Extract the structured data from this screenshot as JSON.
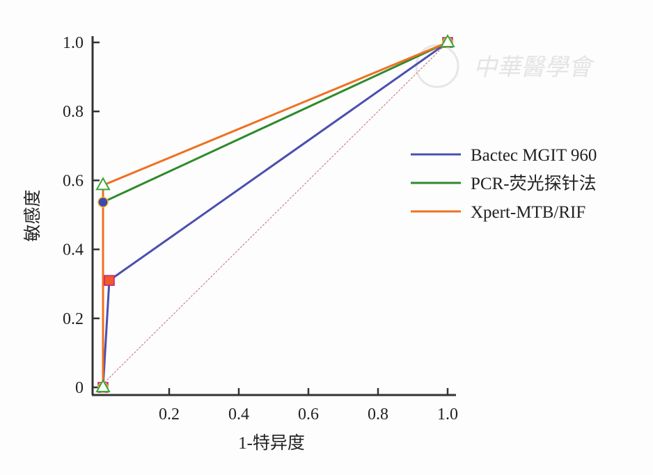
{
  "chart_data": {
    "type": "line",
    "title": "",
    "xlabel": "1-特异度",
    "ylabel": "敏感度",
    "xlim": [
      0,
      1.0
    ],
    "ylim": [
      0,
      1.0
    ],
    "xticks": [
      "0.2",
      "0.4",
      "0.6",
      "0.8",
      "1.0"
    ],
    "xtick_values": [
      0.2,
      0.4,
      0.6,
      0.8,
      1.0
    ],
    "yticks": [
      "0",
      "0.2",
      "0.4",
      "0.6",
      "0.8",
      "1.0"
    ],
    "ytick_values": [
      0,
      0.2,
      0.4,
      0.6,
      0.8,
      1.0
    ],
    "grid": false,
    "legend_position": "right",
    "series": [
      {
        "name": "Bactec MGIT 960",
        "color": "#4a4fb0",
        "marker": "square",
        "marker_color": "#f05a28",
        "x": [
          0.01,
          0.028,
          1.0
        ],
        "y": [
          0,
          0.31,
          1.0
        ]
      },
      {
        "name": "PCR-荧光探针法",
        "color": "#2e8a2a",
        "marker": "circle",
        "marker_color": "#3f47b5",
        "x": [
          0.01,
          0.01,
          1.0
        ],
        "y": [
          0,
          0.537,
          1.0
        ]
      },
      {
        "name": "Xpert-MTB/RIF",
        "color": "#f07020",
        "marker": "triangle",
        "marker_color": "#3aa63a",
        "x": [
          0.01,
          0.01,
          1.0
        ],
        "y": [
          0,
          0.586,
          1.0
        ]
      }
    ],
    "reference_line": {
      "x": [
        0,
        1
      ],
      "y": [
        0,
        1
      ],
      "color": "#d08080"
    },
    "watermark": "中華醫學會"
  }
}
